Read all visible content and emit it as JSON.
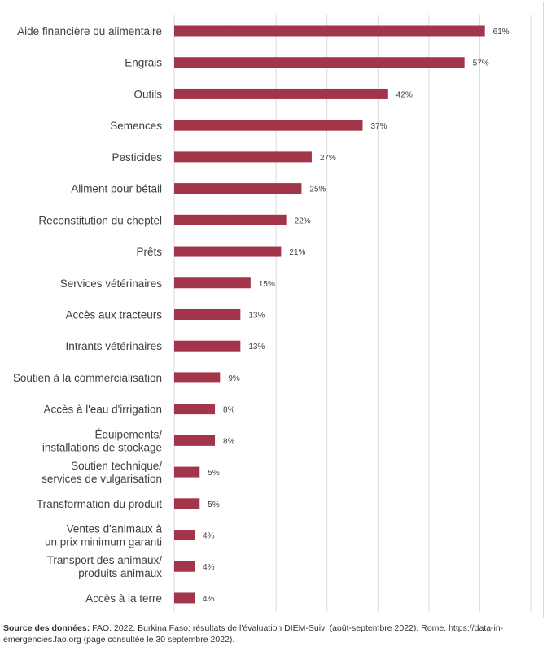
{
  "chart_data": {
    "type": "bar",
    "orientation": "horizontal",
    "categories": [
      "Aide financière ou alimentaire",
      "Engrais",
      "Outils",
      "Semences",
      "Pesticides",
      "Aliment pour bétail",
      "Reconstitution du cheptel",
      "Prêts",
      "Services vétérinaires",
      "Accès aux tracteurs",
      "Intrants vétérinaires",
      "Soutien à la commercialisation",
      "Accès à l'eau d'irrigation",
      "Équipements/\ninstallations de stockage",
      "Soutien technique/\nservices de vulgarisation",
      "Transformation du produit",
      "Ventes d'animaux à\nun prix minimum garanti",
      "Transport des animaux/\nproduits animaux",
      "Accès à la terre"
    ],
    "values": [
      61,
      57,
      42,
      37,
      27,
      25,
      22,
      21,
      15,
      13,
      13,
      9,
      8,
      8,
      5,
      5,
      4,
      4,
      4
    ],
    "value_labels": [
      "61%",
      "57%",
      "42%",
      "37%",
      "27%",
      "25%",
      "22%",
      "21%",
      "15%",
      "13%",
      "13%",
      "9%",
      "8%",
      "8%",
      "5%",
      "5%",
      "4%",
      "4%",
      "4%"
    ],
    "xlim": [
      0,
      70
    ],
    "grid": "vertical",
    "bar_color": "#a3354a",
    "grid_color": "#d9d9d9",
    "title": "",
    "xlabel": "",
    "ylabel": ""
  },
  "source": {
    "label": "Source des données:",
    "text": "FAO. 2022. Burkina Faso: résultats de l'évaluation DIEM-Suivi (août-septembre 2022). Rome. https://data-in-emergencies.fao.org (page consultée le 30 septembre 2022)."
  }
}
